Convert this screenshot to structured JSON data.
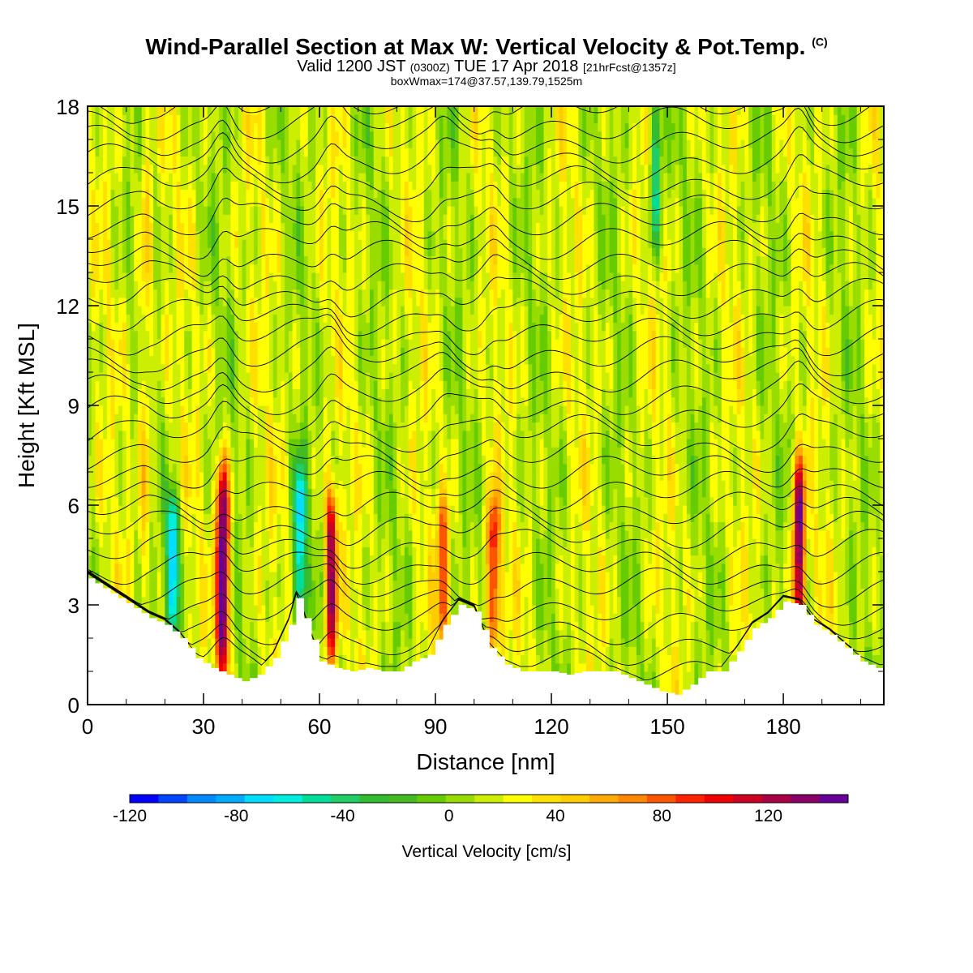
{
  "header": {
    "title_main": "Wind-Parallel Section at Max W: Vertical Velocity & Pot.Temp.",
    "title_mark": "(C)",
    "valid_prefix": "Valid 1200 JST",
    "valid_utc": "(0300Z)",
    "valid_date": "TUE 17 Apr 2018",
    "forecast": "[21hrFcst@1357z]",
    "box_info": "boxWmax=174@37.57,139.79,1525m"
  },
  "chart_data": {
    "type": "heatmap",
    "title": "Wind-Parallel Section at Max W: Vertical Velocity & Pot.Temp.",
    "xlabel": "Distance [nm]",
    "ylabel": "Height [Kft MSL]",
    "xlim": [
      0,
      206
    ],
    "ylim": [
      0,
      18
    ],
    "xticks": [
      0,
      30,
      60,
      90,
      120,
      150,
      180
    ],
    "yticks": [
      0,
      3,
      6,
      9,
      12,
      15,
      18
    ],
    "colorbar": {
      "label": "Vertical Velocity [cm/s]",
      "min": -120,
      "max": 150,
      "step": 10,
      "tick_labels": [
        "-120",
        "-80",
        "-40",
        "0",
        "40",
        "80",
        "120"
      ],
      "tick_values": [
        -120,
        -80,
        -40,
        0,
        40,
        80,
        120
      ],
      "colors": [
        "#0000ff",
        "#0044ff",
        "#0088ff",
        "#00aaff",
        "#00ddff",
        "#00eedd",
        "#00dd99",
        "#22cc66",
        "#33bb33",
        "#44bb22",
        "#66cc00",
        "#99dd00",
        "#ccee00",
        "#ffff00",
        "#ffe000",
        "#ffcc00",
        "#ffaa00",
        "#ff8800",
        "#ff5500",
        "#ff2200",
        "#ee0000",
        "#cc0022",
        "#aa0044",
        "#880066",
        "#660099"
      ]
    },
    "terrain_kft": [
      [
        0,
        3.8
      ],
      [
        4,
        3.5
      ],
      [
        8,
        3.2
      ],
      [
        12,
        2.9
      ],
      [
        16,
        2.6
      ],
      [
        20,
        2.4
      ],
      [
        24,
        2.0
      ],
      [
        28,
        1.4
      ],
      [
        32,
        1.1
      ],
      [
        36,
        0.9
      ],
      [
        40,
        0.7
      ],
      [
        44,
        0.9
      ],
      [
        48,
        1.4
      ],
      [
        52,
        2.4
      ],
      [
        54,
        3.2
      ],
      [
        56,
        2.6
      ],
      [
        60,
        1.3
      ],
      [
        64,
        1.1
      ],
      [
        68,
        1.0
      ],
      [
        72,
        1.1
      ],
      [
        76,
        1.0
      ],
      [
        80,
        1.0
      ],
      [
        84,
        1.3
      ],
      [
        88,
        1.5
      ],
      [
        92,
        2.4
      ],
      [
        96,
        3.0
      ],
      [
        100,
        2.8
      ],
      [
        104,
        1.7
      ],
      [
        108,
        1.2
      ],
      [
        112,
        1.0
      ],
      [
        116,
        1.0
      ],
      [
        120,
        1.0
      ],
      [
        124,
        0.9
      ],
      [
        128,
        1.0
      ],
      [
        132,
        1.0
      ],
      [
        136,
        1.0
      ],
      [
        140,
        0.8
      ],
      [
        144,
        0.6
      ],
      [
        148,
        0.4
      ],
      [
        152,
        0.3
      ],
      [
        156,
        0.6
      ],
      [
        160,
        1.0
      ],
      [
        164,
        1.0
      ],
      [
        168,
        1.6
      ],
      [
        172,
        2.3
      ],
      [
        176,
        2.6
      ],
      [
        180,
        3.1
      ],
      [
        184,
        3.0
      ],
      [
        188,
        2.4
      ],
      [
        192,
        2.1
      ],
      [
        196,
        1.7
      ],
      [
        200,
        1.3
      ],
      [
        204,
        1.1
      ],
      [
        206,
        1.0
      ]
    ],
    "updraft_cores": [
      {
        "x": 35,
        "z": [
          1.0,
          7.0
        ],
        "w": 140
      },
      {
        "x": 63,
        "z": [
          1.5,
          6.0
        ],
        "w": 110
      },
      {
        "x": 105,
        "z": [
          2.0,
          6.0
        ],
        "w": 80
      },
      {
        "x": 184,
        "z": [
          2.5,
          7.0
        ],
        "w": 120
      },
      {
        "x": 92,
        "z": [
          2.0,
          6.0
        ],
        "w": 60
      },
      {
        "x": 15,
        "z": [
          3.0,
          18.0
        ],
        "w": 30
      }
    ],
    "downdraft_cores": [
      {
        "x": 22,
        "z": [
          2.4,
          6.0
        ],
        "w": -90
      },
      {
        "x": 55,
        "z": [
          2.6,
          7.0
        ],
        "w": -80
      },
      {
        "x": 147,
        "z": [
          14.0,
          18.0
        ],
        "w": -60
      }
    ]
  }
}
